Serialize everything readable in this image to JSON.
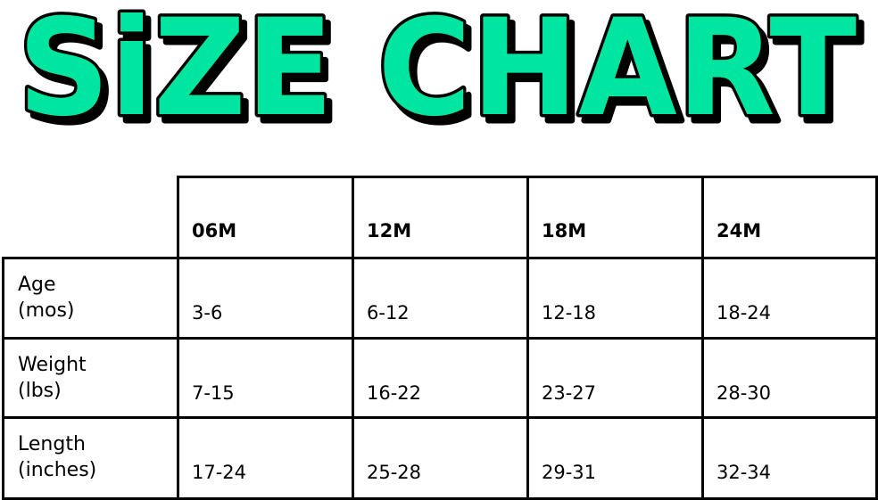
{
  "title": {
    "text": "SiZE CHART",
    "fill": "#00E6A0",
    "outline": "#000000"
  },
  "table": {
    "columns": [
      "06M",
      "12M",
      "18M",
      "24M"
    ],
    "rows": [
      {
        "label_line1": "Age",
        "label_line2": "(mos)",
        "values": [
          "3-6",
          "6-12",
          "12-18",
          "18-24"
        ]
      },
      {
        "label_line1": "Weight",
        "label_line2": "(lbs)",
        "values": [
          "7-15",
          "16-22",
          "23-27",
          "28-30"
        ]
      },
      {
        "label_line1": "Length",
        "label_line2": "(inches)",
        "values": [
          "17-24",
          "25-28",
          "29-31",
          "32-34"
        ]
      }
    ]
  }
}
